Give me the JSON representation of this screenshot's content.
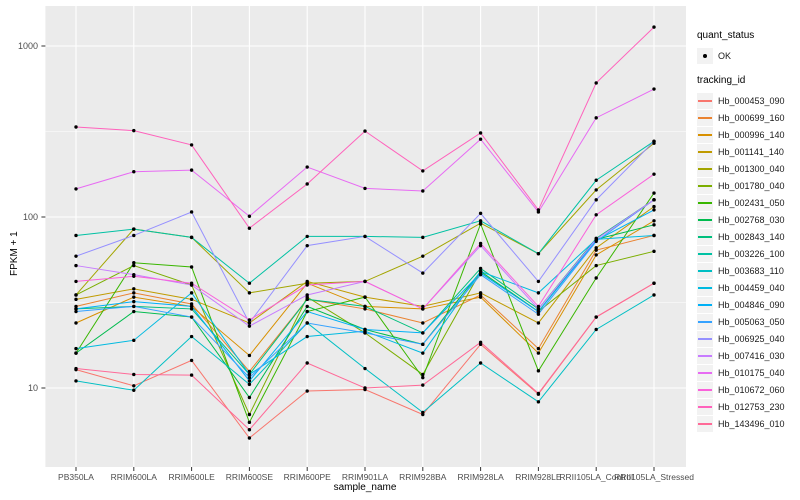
{
  "figure": {
    "background": "#ffffff",
    "panel_background": "#ebebeb",
    "grid_color": "#ffffff",
    "point_color": "#000000",
    "tick_label_color": "#4d4d4d"
  },
  "x_axis": {
    "title": "sample_name",
    "categories": [
      "PB350LA",
      "RRIM600LA",
      "RRIM600LE",
      "RRIM600SE",
      "RRIM600PE",
      "RRIM901LA",
      "RRIM928BA",
      "RRIM928LA",
      "RRIM928LE",
      "RRII105LA_Control",
      "RRII105LA_Stressed"
    ]
  },
  "y_axis": {
    "title": "FPKM + 1",
    "ticks": [
      "10",
      "100",
      "1000"
    ],
    "tick_values": [
      10,
      100,
      1000
    ],
    "minor_tick_values": [
      31.62,
      316.2
    ],
    "scale": "log10"
  },
  "legend": {
    "quant_status": {
      "title": "quant_status",
      "items": [
        {
          "label": "OK",
          "marker": "point"
        }
      ]
    },
    "tracking_id": {
      "title": "tracking_id"
    }
  },
  "chart_data": {
    "type": "line",
    "title": "",
    "xlabel": "sample_name",
    "ylabel": "FPKM + 1",
    "yscale": "log10",
    "ylim": [
      3.5,
      1600
    ],
    "grid": true,
    "legend_position": "right",
    "marker": "black-point",
    "x": [
      "PB350LA",
      "RRIM600LA",
      "RRIM600LE",
      "RRIM600SE",
      "RRIM600PE",
      "RRIM901LA",
      "RRIM928BA",
      "RRIM928LA",
      "RRIM928LE",
      "RRII105LA_Control",
      "RRII105LA_Stressed"
    ],
    "series": [
      {
        "name": "Hb_000453_090",
        "color": "#F8766D",
        "values": [
          12.8,
          10.3,
          14.5,
          5.1,
          9.6,
          9.8,
          7.0,
          18,
          9.2,
          26,
          41
        ]
      },
      {
        "name": "Hb_000699_160",
        "color": "#EA8331",
        "values": [
          30,
          36,
          31,
          12.5,
          33,
          29,
          24,
          35,
          17,
          64,
          78
        ]
      },
      {
        "name": "Hb_000996_140",
        "color": "#D89000",
        "values": [
          24,
          34,
          30,
          15.5,
          41,
          30,
          29,
          34,
          16,
          60,
          95
        ]
      },
      {
        "name": "Hb_001141_140",
        "color": "#C09B00",
        "values": [
          33,
          38,
          33,
          24,
          42,
          34,
          30,
          36,
          24,
          66,
          115
        ]
      },
      {
        "name": "Hb_001300_040",
        "color": "#A3A500",
        "values": [
          35,
          85,
          76,
          36,
          41,
          42,
          59,
          92,
          61,
          144,
          270
        ]
      },
      {
        "name": "Hb_001780_040",
        "color": "#7CAE00",
        "values": [
          35,
          52,
          40,
          7.0,
          34,
          21,
          12,
          48,
          28,
          52,
          63
        ]
      },
      {
        "name": "Hb_002431_050",
        "color": "#39B600",
        "values": [
          16,
          54,
          51,
          6.3,
          28,
          34,
          11.5,
          91,
          12.6,
          44,
          138
        ]
      },
      {
        "name": "Hb_002768_030",
        "color": "#00BB4E",
        "values": [
          16,
          28,
          26,
          8.8,
          30,
          22,
          18,
          48,
          28,
          74,
          90
        ]
      },
      {
        "name": "Hb_002843_140",
        "color": "#00BF7D",
        "values": [
          29,
          30,
          29,
          12,
          33,
          30,
          21,
          50,
          29,
          75,
          126
        ]
      },
      {
        "name": "Hb_003226_100",
        "color": "#00C1A3",
        "values": [
          78,
          85,
          76,
          41,
          77,
          77,
          76,
          95,
          61,
          164,
          277
        ]
      },
      {
        "name": "Hb_003683_110",
        "color": "#00BFC4",
        "values": [
          11,
          9.7,
          20,
          10.5,
          24,
          13,
          7.2,
          14,
          8.3,
          22,
          35
        ]
      },
      {
        "name": "Hb_004459_040",
        "color": "#00BAE0",
        "values": [
          17,
          19,
          36,
          12,
          20,
          21.5,
          16,
          48,
          36,
          74,
          78
        ]
      },
      {
        "name": "Hb_004846_090",
        "color": "#00B0F6",
        "values": [
          29,
          32,
          30,
          11,
          28,
          22,
          21,
          47,
          28,
          73,
          110
        ]
      },
      {
        "name": "Hb_005063_050",
        "color": "#35A2FF",
        "values": [
          28,
          30,
          26,
          11.5,
          24,
          21,
          18,
          46,
          27,
          72,
          126
        ]
      },
      {
        "name": "Hb_006925_040",
        "color": "#9590FF",
        "values": [
          59,
          78,
          107,
          24,
          68,
          77,
          47,
          105,
          42,
          126,
          277
        ]
      },
      {
        "name": "Hb_007416_030",
        "color": "#C77CFF",
        "values": [
          52,
          46,
          40,
          23,
          35,
          42,
          29,
          68,
          29,
          74,
          126
        ]
      },
      {
        "name": "Hb_010175_040",
        "color": "#E76BF3",
        "values": [
          146,
          184,
          188,
          101,
          196,
          147,
          142,
          285,
          107,
          380,
          560
        ]
      },
      {
        "name": "Hb_010672_060",
        "color": "#FA62DB",
        "values": [
          42,
          45,
          41,
          25,
          40,
          42,
          29,
          70,
          30,
          103,
          178
        ]
      },
      {
        "name": "Hb_012753_230",
        "color": "#FF62BC",
        "values": [
          336,
          320,
          264,
          86,
          156,
          318,
          186,
          310,
          110,
          608,
          1290
        ]
      },
      {
        "name": "Hb_143496_010",
        "color": "#FF6A98",
        "values": [
          13,
          12,
          11.9,
          5.7,
          14,
          10,
          10.4,
          18.5,
          9.3,
          26,
          41
        ]
      }
    ]
  }
}
